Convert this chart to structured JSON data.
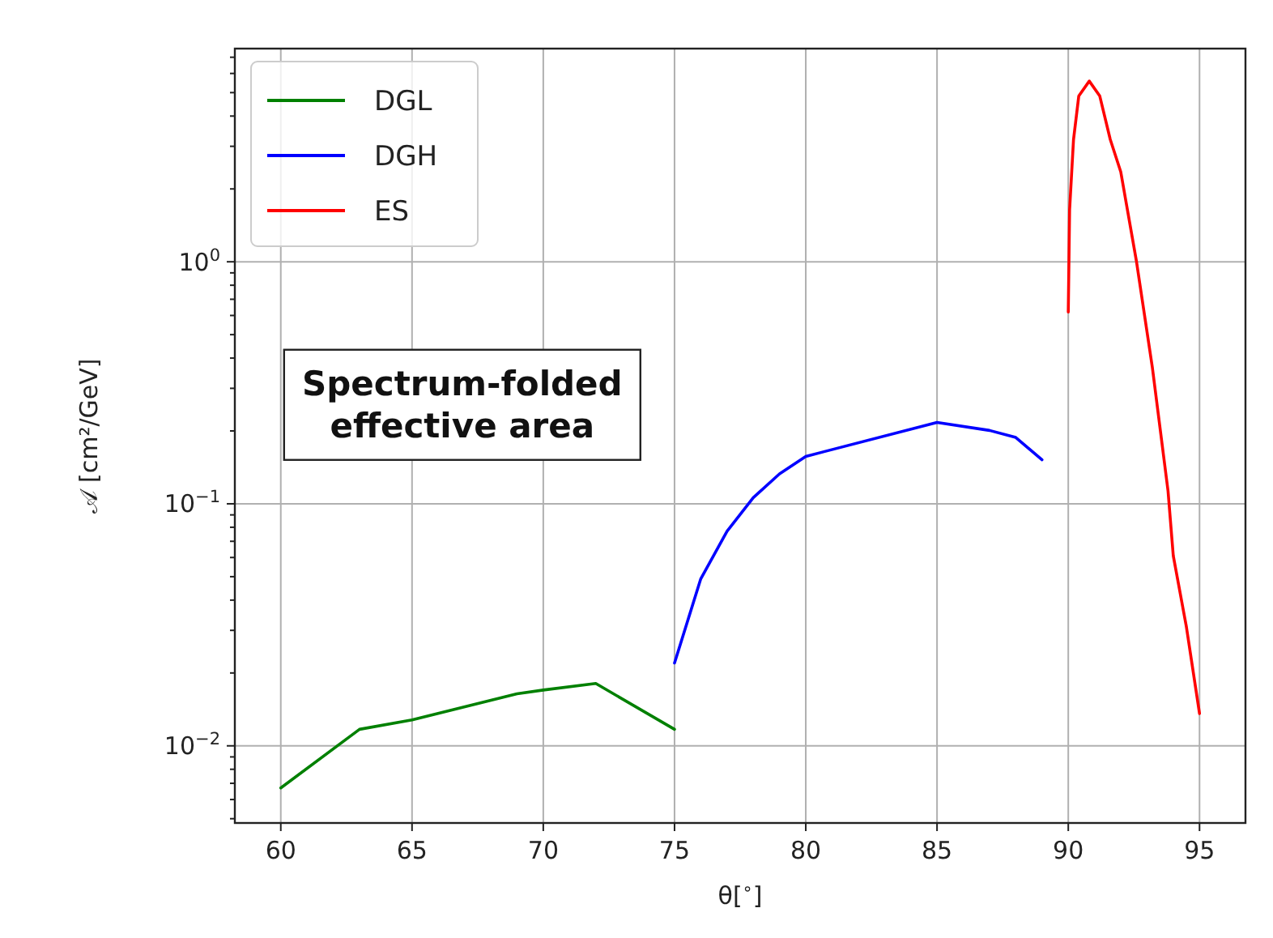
{
  "chart_data": {
    "type": "line",
    "xlabel": "θ[$^{∘}$]",
    "ylabel": "𝒜 [cm²/GeV]",
    "log": "y",
    "grid": true,
    "legend": "top left",
    "line_style": "solid",
    "marker": "none",
    "xlim": [
      58.25,
      96.75
    ],
    "xticks": [
      60,
      65,
      70,
      75,
      80,
      85,
      90,
      95
    ],
    "ylim": [
      0.0048,
      7.6
    ],
    "yticks": [
      {
        "value": 0.005,
        "label": null
      },
      {
        "value": 0.006,
        "label": null
      },
      {
        "value": 0.007,
        "label": null
      },
      {
        "value": 0.008,
        "label": null
      },
      {
        "value": 0.009,
        "label": null
      },
      {
        "value": 0.01,
        "label": "10$^{−2}$"
      },
      {
        "value": 0.02,
        "label": null
      },
      {
        "value": 0.03,
        "label": null
      },
      {
        "value": 0.04,
        "label": null
      },
      {
        "value": 0.05,
        "label": null
      },
      {
        "value": 0.06,
        "label": null
      },
      {
        "value": 0.07,
        "label": null
      },
      {
        "value": 0.08,
        "label": null
      },
      {
        "value": 0.09,
        "label": null
      },
      {
        "value": 0.1,
        "label": "10$^{−1}$"
      },
      {
        "value": 0.2,
        "label": null
      },
      {
        "value": 0.3,
        "label": null
      },
      {
        "value": 0.4,
        "label": null
      },
      {
        "value": 0.5,
        "label": null
      },
      {
        "value": 0.6,
        "label": null
      },
      {
        "value": 0.7,
        "label": null
      },
      {
        "value": 0.8,
        "label": null
      },
      {
        "value": 0.9,
        "label": null
      },
      {
        "value": 1,
        "label": "10$^{0}$"
      },
      {
        "value": 2,
        "label": null
      },
      {
        "value": 3,
        "label": null
      },
      {
        "value": 4,
        "label": null
      },
      {
        "value": 5,
        "label": null
      },
      {
        "value": 6,
        "label": null
      },
      {
        "value": 7,
        "label": null
      }
    ],
    "annotations": [
      "Spectrum-folded\neffective area"
    ],
    "series": [
      {
        "name": "DGL",
        "color": "#008000",
        "x": [
          60,
          63,
          65,
          69,
          70,
          72,
          75
        ],
        "values": [
          0.0067,
          0.0117,
          0.0128,
          0.0164,
          0.017,
          0.0181,
          0.0117
        ]
      },
      {
        "name": "DGH",
        "color": "#0000ff",
        "x": [
          75,
          76,
          77,
          78,
          79,
          80,
          85,
          87,
          88,
          89
        ],
        "values": [
          0.022,
          0.049,
          0.077,
          0.106,
          0.133,
          0.157,
          0.217,
          0.201,
          0.188,
          0.152
        ]
      },
      {
        "name": "ES",
        "color": "#ff0000",
        "x": [
          90,
          90.05,
          90.2,
          90.4,
          90.8,
          91.2,
          91.6,
          92,
          92.6,
          93.2,
          93.8,
          94,
          94.5,
          95
        ],
        "values": [
          0.62,
          1.64,
          3.2,
          4.84,
          5.58,
          4.84,
          3.2,
          2.35,
          1,
          0.368,
          0.113,
          0.061,
          0.031,
          0.0136
        ]
      }
    ]
  }
}
